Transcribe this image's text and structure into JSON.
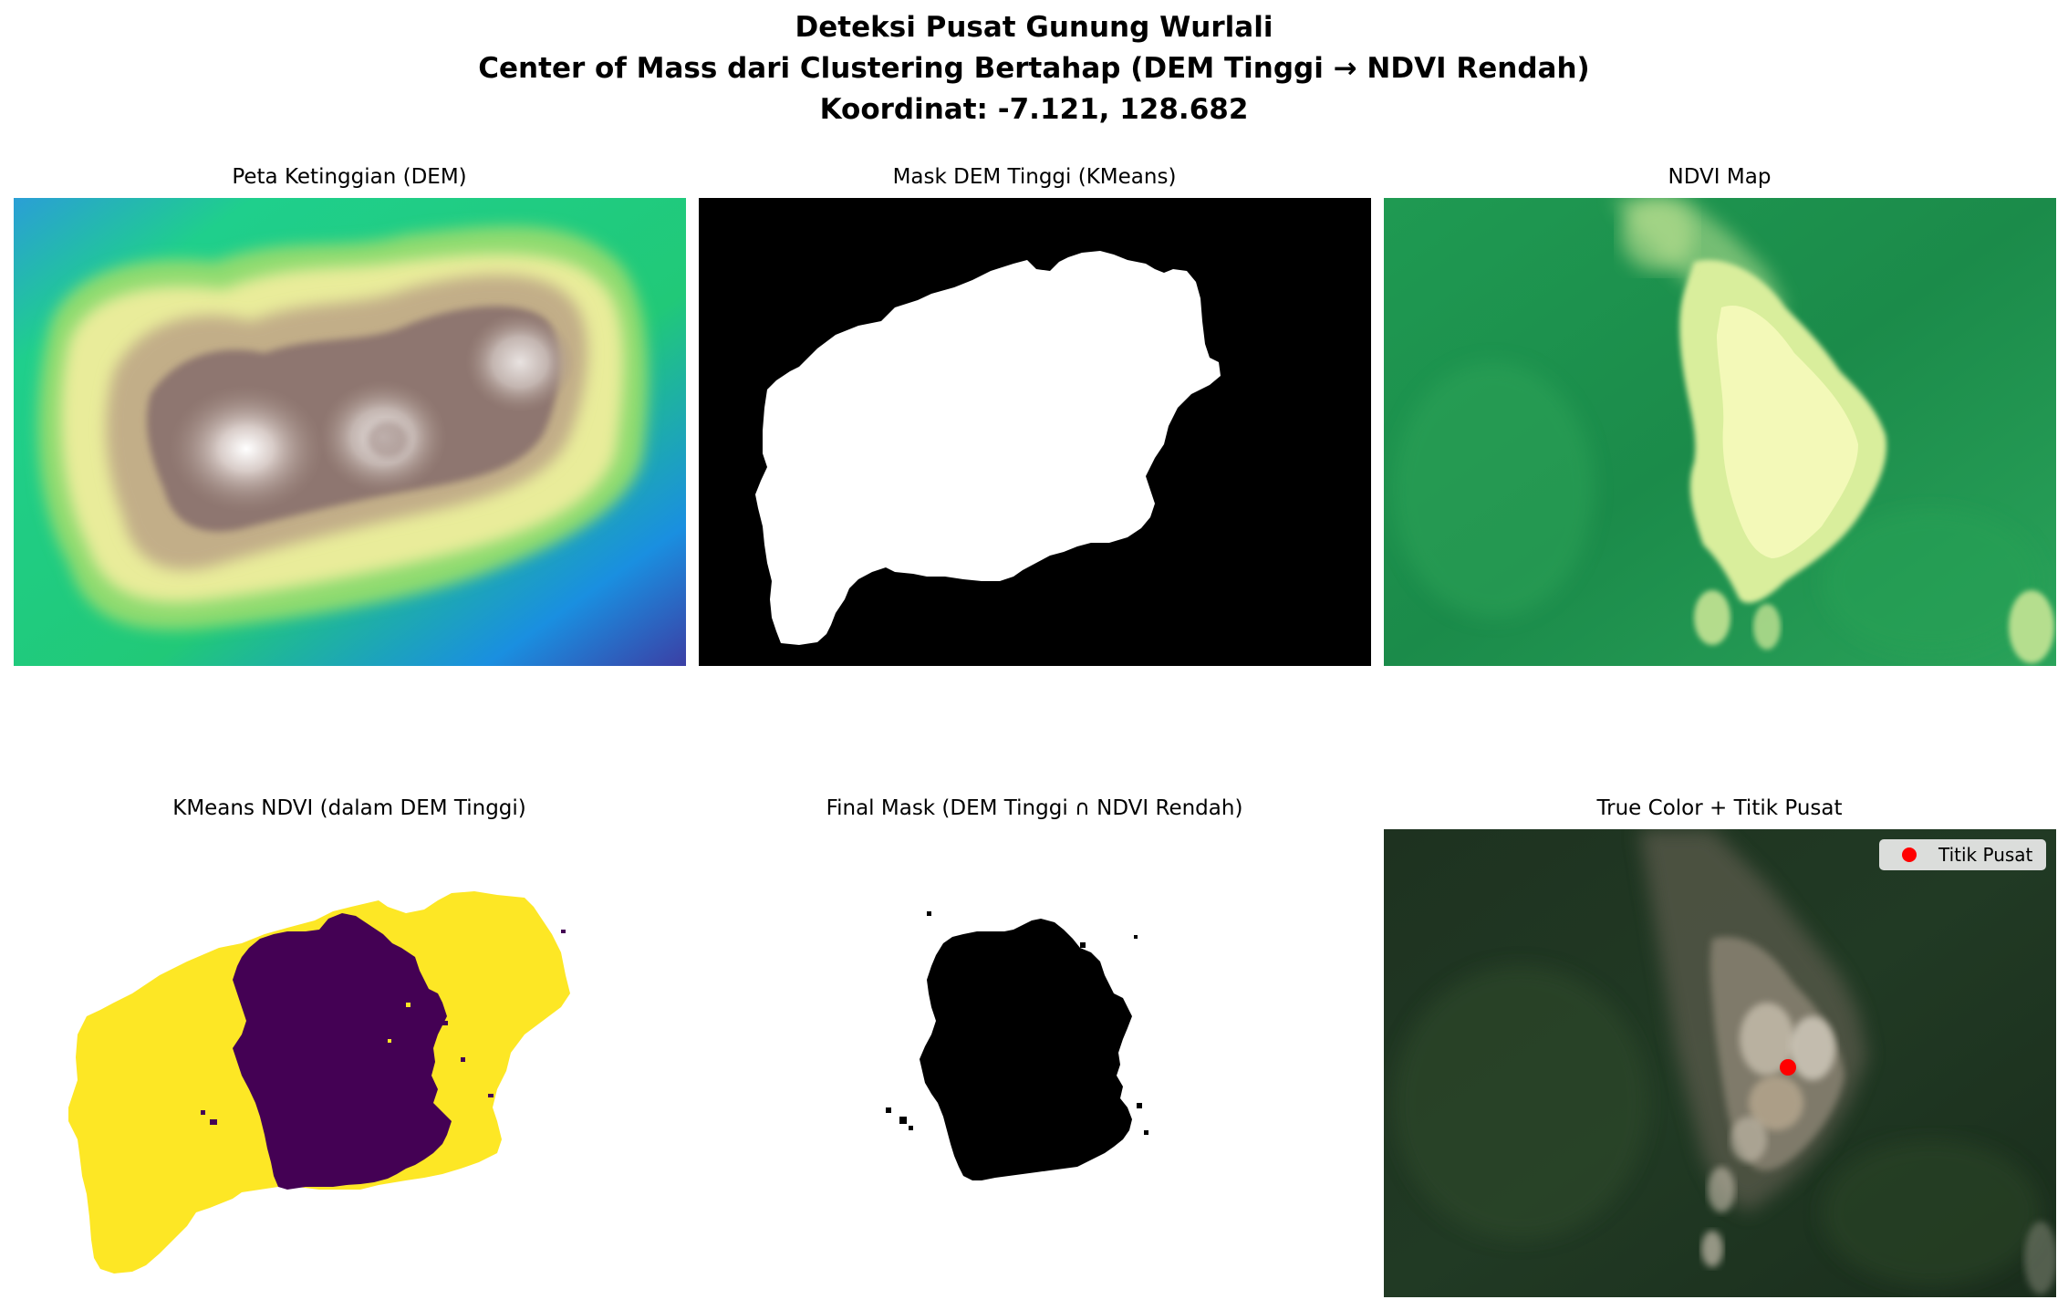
{
  "figure": {
    "title_line1": "Deteksi Pusat Gunung Wurlali",
    "title_line2": "Center of Mass dari Clustering Bertahap (DEM Tinggi → NDVI Rendah)",
    "title_line3": "Koordinat: -7.121, 128.682"
  },
  "panels": {
    "dem": {
      "title": "Peta Ketinggian (DEM)",
      "colormap": "terrain"
    },
    "dem_mask": {
      "title": "Mask DEM Tinggi (KMeans)",
      "foreground": "#ffffff",
      "background": "#000000"
    },
    "ndvi": {
      "title": "NDVI Map",
      "colormap": "YlGn"
    },
    "kmeans_ndvi": {
      "title": "KMeans NDVI (dalam DEM Tinggi)",
      "cluster_colors": [
        "#440154",
        "#fde725"
      ]
    },
    "final_mask": {
      "title": "Final Mask (DEM Tinggi ∩ NDVI Rendah)",
      "foreground": "#000000",
      "background": "#ffffff"
    },
    "true_color": {
      "title": "True Color + Titik Pusat",
      "marker_color": "#ff0000"
    }
  },
  "legend": {
    "label": "Titik Pusat",
    "marker": "red-dot-icon"
  }
}
